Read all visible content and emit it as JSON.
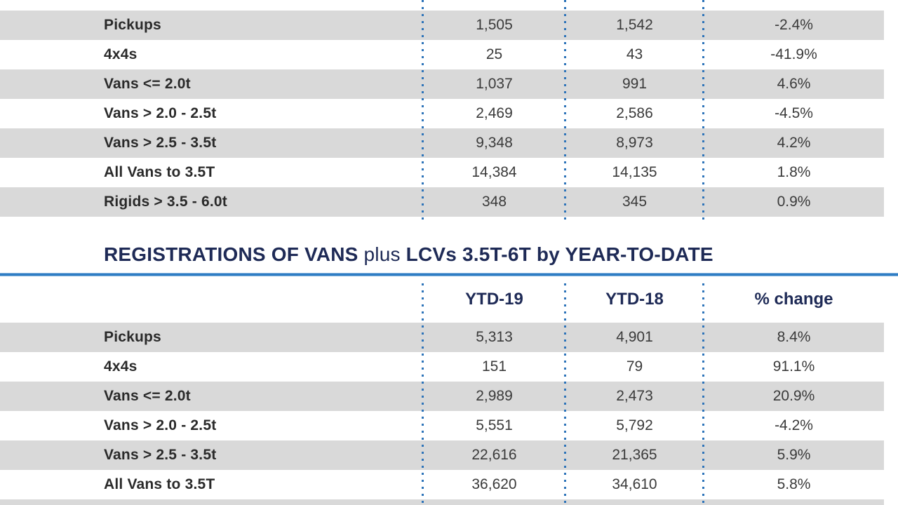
{
  "title": {
    "lead": "REGISTRATIONS OF VANS",
    "mid": "plus",
    "tail": "LCVs 3.5T-6T by YEAR-TO-DATE"
  },
  "monthly_table": {
    "rows": [
      {
        "label": "Pickups",
        "values": [
          "1,505",
          "1,542",
          "-2.4%"
        ]
      },
      {
        "label": "4x4s",
        "values": [
          "25",
          "43",
          "-41.9%"
        ]
      },
      {
        "label": "Vans <= 2.0t",
        "values": [
          "1,037",
          "991",
          "4.6%"
        ]
      },
      {
        "label": "Vans > 2.0 - 2.5t",
        "values": [
          "2,469",
          "2,586",
          "-4.5%"
        ]
      },
      {
        "label": "Vans > 2.5 - 3.5t",
        "values": [
          "9,348",
          "8,973",
          "4.2%"
        ]
      },
      {
        "label": "All Vans to 3.5T",
        "values": [
          "14,384",
          "14,135",
          "1.8%"
        ]
      },
      {
        "label": "Rigids > 3.5 - 6.0t",
        "values": [
          "348",
          "345",
          "0.9%"
        ]
      }
    ]
  },
  "ytd_table": {
    "headers": [
      "YTD-19",
      "YTD-18",
      "% change"
    ],
    "rows": [
      {
        "label": "Pickups",
        "values": [
          "5,313",
          "4,901",
          "8.4%"
        ]
      },
      {
        "label": "4x4s",
        "values": [
          "151",
          "79",
          "91.1%"
        ]
      },
      {
        "label": "Vans <= 2.0t",
        "values": [
          "2,989",
          "2,473",
          "20.9%"
        ]
      },
      {
        "label": "Vans > 2.0 - 2.5t",
        "values": [
          "5,551",
          "5,792",
          "-4.2%"
        ]
      },
      {
        "label": "Vans > 2.5 - 3.5t",
        "values": [
          "22,616",
          "21,365",
          "5.9%"
        ]
      },
      {
        "label": "All Vans to 3.5T",
        "values": [
          "36,620",
          "34,610",
          "5.8%"
        ]
      }
    ],
    "partial_next_row_visible": true
  },
  "colors": {
    "row_stripe": "#d9d9d9",
    "dotted_separator": "#2e74b9",
    "accent_rule": "#2f7dc4",
    "heading_navy": "#1e2a56",
    "label_text": "#2a2a2a",
    "value_text": "#3a3a3a"
  }
}
